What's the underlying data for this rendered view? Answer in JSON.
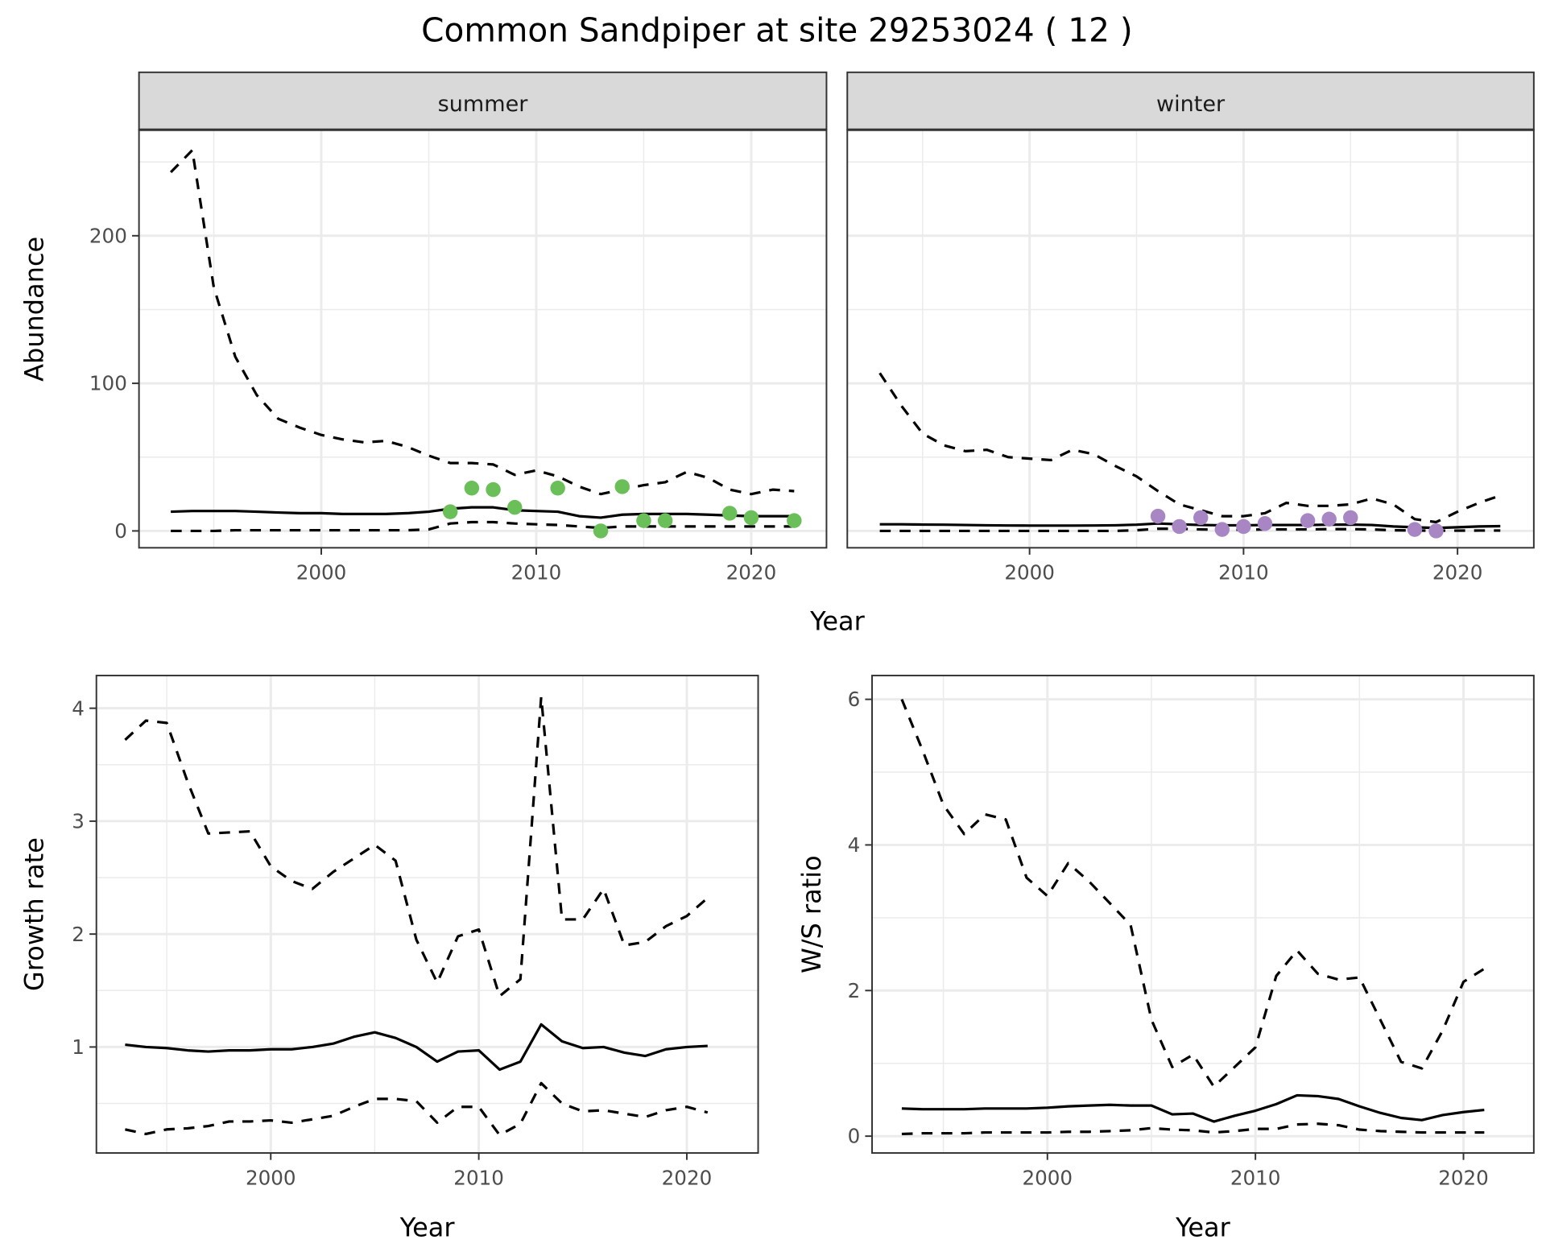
{
  "title": "Common Sandpiper at site 29253024 ( 12 )",
  "colors": {
    "summer_points": "#6ABF59",
    "winter_points": "#A886C4",
    "lines": "#000000",
    "strip_bg": "#D9D9D9",
    "grid": "#EBEBEB"
  },
  "chart_data": [
    {
      "type": "line",
      "facet": "summer",
      "xlabel": "Year",
      "ylabel": "Abundance",
      "xticks": [
        2000,
        2010,
        2020
      ],
      "yticks": [
        0,
        100,
        200
      ],
      "x": [
        1993,
        1994,
        1995,
        1996,
        1997,
        1998,
        1999,
        2000,
        2001,
        2002,
        2003,
        2004,
        2005,
        2006,
        2007,
        2008,
        2009,
        2010,
        2011,
        2012,
        2013,
        2014,
        2015,
        2016,
        2017,
        2018,
        2019,
        2020,
        2021,
        2022
      ],
      "series": [
        {
          "style": "dashed",
          "values": [
            243,
            258,
            165,
            118,
            92,
            76,
            70,
            65,
            62,
            60,
            61,
            57,
            51,
            46,
            46,
            45,
            38,
            41,
            37,
            30,
            25,
            28,
            31,
            33,
            40,
            36,
            28,
            25,
            28,
            27
          ]
        },
        {
          "style": "solid",
          "values": [
            13,
            13.5,
            13.5,
            13.5,
            13,
            12.5,
            12,
            12,
            11.5,
            11.5,
            11.5,
            12,
            13,
            15,
            16,
            16,
            14,
            13.5,
            13,
            10,
            9,
            11,
            11.5,
            11.5,
            11.5,
            11,
            10.5,
            10,
            10,
            10
          ]
        },
        {
          "style": "dashed",
          "values": [
            0,
            0,
            0,
            0.5,
            0.5,
            0.5,
            0.5,
            0.5,
            0.5,
            0.5,
            0.5,
            0.5,
            1,
            5,
            6,
            6,
            5,
            4.5,
            4,
            3,
            2,
            3,
            3,
            3,
            3,
            3,
            3,
            3,
            3,
            3
          ]
        }
      ],
      "points": {
        "x": [
          2006,
          2007,
          2008,
          2009,
          2011,
          2013,
          2014,
          2015,
          2016,
          2019,
          2020,
          2022
        ],
        "y": [
          13,
          29,
          28,
          16,
          29,
          0,
          30,
          7,
          7,
          12,
          9,
          7
        ]
      }
    },
    {
      "type": "line",
      "facet": "winter",
      "xlabel": "Year",
      "ylabel": "Abundance",
      "xticks": [
        2000,
        2010,
        2020
      ],
      "yticks": [
        0,
        100,
        200
      ],
      "x": [
        1993,
        1994,
        1995,
        1996,
        1997,
        1998,
        1999,
        2000,
        2001,
        2002,
        2003,
        2004,
        2005,
        2006,
        2007,
        2008,
        2009,
        2010,
        2011,
        2012,
        2013,
        2014,
        2015,
        2016,
        2017,
        2018,
        2019,
        2020,
        2021,
        2022
      ],
      "series": [
        {
          "style": "dashed",
          "values": [
            107,
            85,
            66,
            58,
            54,
            55,
            50,
            49,
            48,
            55,
            52,
            44,
            37,
            27,
            18,
            14,
            10,
            10,
            12,
            19,
            17,
            17,
            18,
            22,
            18,
            8,
            6,
            13,
            19,
            24
          ]
        },
        {
          "style": "solid",
          "values": [
            4.5,
            4.5,
            4.3,
            4.2,
            4,
            3.8,
            3.7,
            3.6,
            3.6,
            3.6,
            3.7,
            3.8,
            4.2,
            5,
            4.5,
            4,
            3.8,
            3.8,
            4,
            4,
            4,
            4.2,
            4.3,
            4,
            3,
            2.5,
            2,
            2.5,
            3,
            3.2
          ]
        },
        {
          "style": "dashed",
          "values": [
            0,
            0,
            0,
            0,
            0,
            0,
            0,
            0,
            0,
            0,
            0,
            0,
            0.5,
            1.5,
            1.5,
            1,
            0.8,
            0.8,
            1,
            1,
            1,
            1.2,
            1.2,
            1,
            0.5,
            0.3,
            0.2,
            0.2,
            0.3,
            0.3
          ]
        }
      ],
      "points": {
        "x": [
          2006,
          2007,
          2008,
          2009,
          2010,
          2011,
          2013,
          2014,
          2015,
          2018,
          2019
        ],
        "y": [
          10,
          3,
          9,
          1,
          3,
          5,
          7,
          8,
          9,
          1,
          0
        ]
      }
    },
    {
      "type": "line",
      "xlabel": "Year",
      "ylabel": "Growth rate",
      "xticks": [
        2000,
        2010,
        2020
      ],
      "yticks": [
        1,
        2,
        3,
        4
      ],
      "x": [
        1993,
        1994,
        1995,
        1996,
        1997,
        1998,
        1999,
        2000,
        2001,
        2002,
        2003,
        2004,
        2005,
        2006,
        2007,
        2008,
        2009,
        2010,
        2011,
        2012,
        2013,
        2014,
        2015,
        2016,
        2017,
        2018,
        2019,
        2020,
        2021
      ],
      "series": [
        {
          "style": "dashed",
          "values": [
            3.72,
            3.89,
            3.87,
            3.35,
            2.89,
            2.9,
            2.91,
            2.6,
            2.47,
            2.4,
            2.55,
            2.67,
            2.79,
            2.65,
            1.95,
            1.57,
            1.98,
            2.04,
            1.45,
            1.6,
            4.1,
            2.13,
            2.13,
            2.4,
            1.9,
            1.93,
            2.07,
            2.16,
            2.32
          ]
        },
        {
          "style": "solid",
          "values": [
            1.02,
            1.0,
            0.99,
            0.97,
            0.96,
            0.97,
            0.97,
            0.98,
            0.98,
            1.0,
            1.03,
            1.09,
            1.13,
            1.08,
            1.0,
            0.87,
            0.96,
            0.97,
            0.8,
            0.87,
            1.2,
            1.05,
            0.99,
            1.0,
            0.95,
            0.92,
            0.98,
            1.0,
            1.01
          ]
        },
        {
          "style": "dashed",
          "values": [
            0.27,
            0.23,
            0.27,
            0.28,
            0.3,
            0.34,
            0.34,
            0.35,
            0.33,
            0.36,
            0.39,
            0.47,
            0.54,
            0.54,
            0.52,
            0.33,
            0.47,
            0.47,
            0.22,
            0.32,
            0.68,
            0.5,
            0.43,
            0.44,
            0.41,
            0.38,
            0.44,
            0.47,
            0.42
          ]
        }
      ]
    },
    {
      "type": "line",
      "xlabel": "Year",
      "ylabel": "W/S ratio",
      "xticks": [
        2000,
        2010,
        2020
      ],
      "yticks": [
        0,
        2,
        4,
        6
      ],
      "x": [
        1993,
        1994,
        1995,
        1996,
        1997,
        1998,
        1999,
        2000,
        2001,
        2002,
        2003,
        2004,
        2005,
        2006,
        2007,
        2008,
        2009,
        2010,
        2011,
        2012,
        2013,
        2014,
        2015,
        2016,
        2017,
        2018,
        2019,
        2020,
        2021
      ],
      "series": [
        {
          "style": "dashed",
          "values": [
            6.0,
            5.3,
            4.55,
            4.15,
            4.42,
            4.35,
            3.55,
            3.3,
            3.75,
            3.5,
            3.2,
            2.9,
            1.6,
            0.95,
            1.12,
            0.68,
            0.95,
            1.22,
            2.2,
            2.55,
            2.23,
            2.15,
            2.18,
            1.6,
            1.02,
            0.93,
            1.45,
            2.12,
            2.3
          ]
        },
        {
          "style": "solid",
          "values": [
            0.38,
            0.37,
            0.37,
            0.37,
            0.38,
            0.38,
            0.38,
            0.39,
            0.41,
            0.42,
            0.43,
            0.42,
            0.42,
            0.3,
            0.31,
            0.2,
            0.28,
            0.35,
            0.44,
            0.56,
            0.55,
            0.51,
            0.41,
            0.32,
            0.25,
            0.22,
            0.29,
            0.33,
            0.36
          ]
        },
        {
          "style": "dashed",
          "values": [
            0.03,
            0.04,
            0.04,
            0.04,
            0.05,
            0.05,
            0.05,
            0.05,
            0.06,
            0.06,
            0.07,
            0.08,
            0.11,
            0.09,
            0.08,
            0.05,
            0.07,
            0.1,
            0.1,
            0.16,
            0.17,
            0.15,
            0.09,
            0.07,
            0.06,
            0.05,
            0.05,
            0.05,
            0.05
          ]
        }
      ]
    }
  ]
}
